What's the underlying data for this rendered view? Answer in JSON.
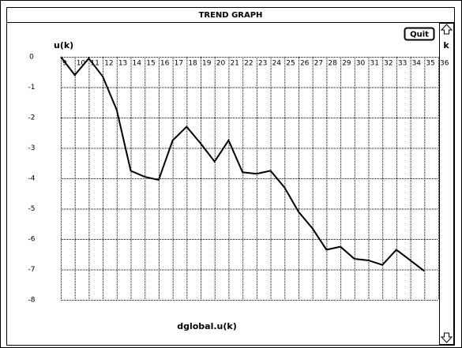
{
  "window_title": "TREND GRAPH",
  "quit_button": "Quit",
  "chart_data": {
    "type": "line",
    "ylabel": "u(k)",
    "xlabel": "k",
    "series_label": "dglobal.u(k)",
    "x": [
      9,
      10,
      11,
      12,
      13,
      14,
      15,
      16,
      17,
      18,
      19,
      20,
      21,
      22,
      23,
      24,
      25,
      26,
      27,
      28,
      29,
      30,
      31,
      32,
      33,
      34,
      35
    ],
    "values": [
      0,
      -0.6,
      -0.05,
      -0.65,
      -1.75,
      -3.75,
      -3.95,
      -4.05,
      -2.75,
      -2.3,
      -2.85,
      -3.45,
      -2.75,
      -3.8,
      -3.85,
      -3.75,
      -4.3,
      -5.1,
      -5.65,
      -6.35,
      -6.25,
      -6.65,
      -6.7,
      -6.85,
      -6.35,
      -6.7,
      -7.05
    ],
    "color": "#000000",
    "xlim": [
      9,
      36
    ],
    "xticks": [
      9,
      10,
      11,
      12,
      13,
      14,
      15,
      16,
      17,
      18,
      19,
      20,
      21,
      22,
      23,
      24,
      25,
      26,
      27,
      28,
      29,
      30,
      31,
      32,
      33,
      34,
      35,
      36
    ],
    "ylim": [
      -8,
      0
    ],
    "yticks": [
      0,
      -1,
      -2,
      -3,
      -4,
      -5,
      -6,
      -7,
      -8
    ],
    "grid": true
  }
}
